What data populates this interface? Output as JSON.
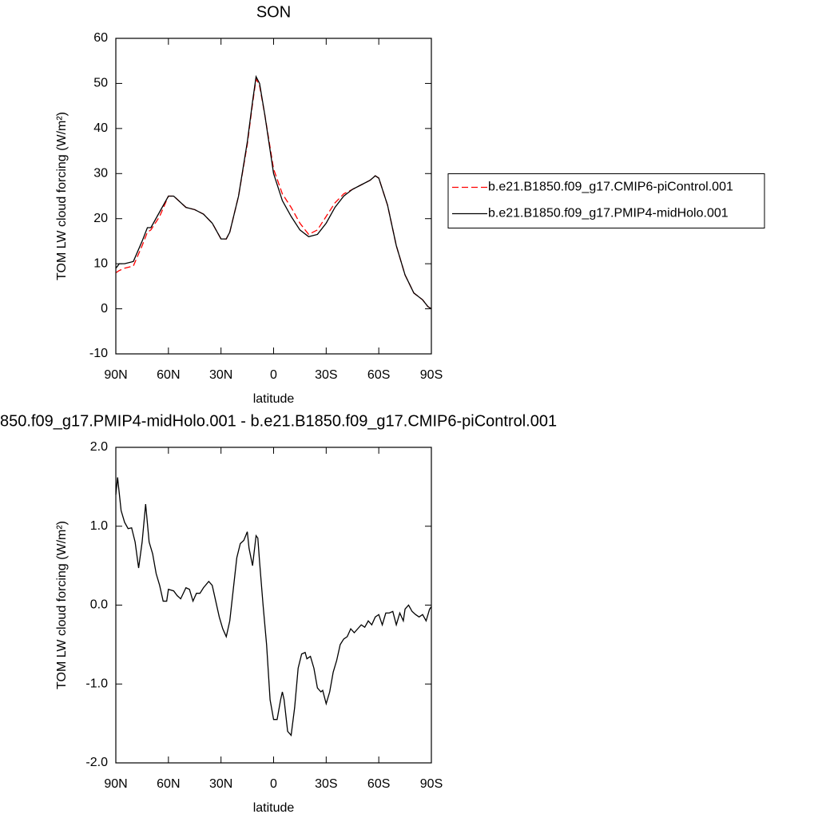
{
  "chart_data": [
    {
      "type": "line",
      "title": "SON",
      "xlabel": "latitude",
      "ylabel": "TOM LW cloud forcing (W/m²)",
      "xlim": [
        90,
        -90
      ],
      "xticks": [
        {
          "value": 90,
          "label": "90N"
        },
        {
          "value": 60,
          "label": "60N"
        },
        {
          "value": 30,
          "label": "30N"
        },
        0,
        {
          "value": -30,
          "label": "30S"
        },
        {
          "value": -60,
          "label": "60S"
        },
        {
          "value": -90,
          "label": "90S"
        }
      ],
      "ylim": [
        -10,
        60
      ],
      "yticks": [
        -10,
        0,
        10,
        20,
        30,
        40,
        50,
        60
      ],
      "legend": "right",
      "x": [
        90,
        88,
        85,
        80,
        75,
        72,
        70,
        65,
        60,
        57,
        50,
        45,
        40,
        35,
        30,
        27,
        25,
        20,
        15,
        12,
        10,
        8,
        5,
        0,
        -5,
        -10,
        -15,
        -20,
        -25,
        -30,
        -35,
        -40,
        -45,
        -50,
        -55,
        -58,
        -60,
        -65,
        -70,
        -75,
        -80,
        -85,
        -88,
        -90
      ],
      "series": [
        {
          "name": "b.e21.B1850.f09_g17.CMIP6-piControl.001",
          "color": "#ff0000",
          "linestyle": "dashed",
          "values": [
            8,
            8.5,
            9,
            9.5,
            14,
            17,
            17.5,
            20.5,
            25,
            25,
            22.5,
            22,
            21,
            19,
            15.5,
            15.5,
            17,
            25,
            36.5,
            45.5,
            51,
            49.5,
            43,
            31,
            25.5,
            22.5,
            19,
            16.5,
            17.5,
            20.5,
            23.5,
            25.5,
            26.5,
            27.5,
            28.5,
            29.5,
            29,
            23,
            14,
            7.5,
            3.5,
            2,
            0.5,
            0
          ]
        },
        {
          "name": "b.e21.B1850.f09_g17.PMIP4-midHolo.001",
          "color": "#000000",
          "linestyle": "solid",
          "values": [
            9,
            10,
            10,
            10.5,
            15,
            18,
            18,
            21.5,
            25,
            25,
            22.5,
            22,
            21,
            19,
            15.5,
            15.5,
            17,
            25,
            37,
            46,
            51.5,
            50,
            43,
            30,
            24,
            20.5,
            17.5,
            16,
            16.5,
            19,
            22.5,
            25,
            26.5,
            27.5,
            28.5,
            29.5,
            29,
            23,
            14,
            7.5,
            3.5,
            2,
            0.5,
            0
          ]
        }
      ]
    },
    {
      "type": "line",
      "title": "850.f09_g17.PMIP4-midHolo.001 - b.e21.B1850.f09_g17.CMIP6-piControl.001",
      "xlabel": "latitude",
      "ylabel": "TOM LW cloud forcing (W/m²)",
      "xlim": [
        90,
        -90
      ],
      "xticks": [
        {
          "value": 90,
          "label": "90N"
        },
        {
          "value": 60,
          "label": "60N"
        },
        {
          "value": 30,
          "label": "30N"
        },
        0,
        {
          "value": -30,
          "label": "30S"
        },
        {
          "value": -60,
          "label": "60S"
        },
        {
          "value": -90,
          "label": "90S"
        }
      ],
      "ylim": [
        -2,
        2
      ],
      "yticks": [
        {
          "value": -2,
          "label": "-2.0"
        },
        {
          "value": -1,
          "label": "-1.0"
        },
        {
          "value": 0,
          "label": "0.0"
        },
        {
          "value": 1,
          "label": "1.0"
        },
        {
          "value": 2,
          "label": "2.0"
        }
      ],
      "color": "#000000",
      "x": [
        90,
        89,
        87,
        85,
        83,
        81,
        79,
        77,
        75,
        73,
        71,
        69,
        67,
        65,
        63,
        61,
        60,
        57,
        55,
        53,
        50,
        48,
        46,
        44,
        42,
        40,
        37,
        35,
        33,
        31,
        29,
        27,
        25,
        23,
        21,
        19,
        17,
        15,
        14,
        12,
        10,
        9,
        8,
        6,
        4,
        2,
        0,
        -2,
        -4,
        -5,
        -6,
        -8,
        -10,
        -12,
        -14,
        -16,
        -18,
        -19,
        -21,
        -23,
        -25,
        -27,
        -28,
        -30,
        -32,
        -34,
        -36,
        -38,
        -40,
        -42,
        -44,
        -46,
        -48,
        -50,
        -52,
        -54,
        -56,
        -58,
        -60,
        -62,
        -64,
        -66,
        -68,
        -70,
        -72,
        -74,
        -75,
        -77,
        -79,
        -81,
        -83,
        -85,
        -87,
        -89,
        -90
      ],
      "values": [
        1.4,
        1.62,
        1.2,
        1.05,
        0.97,
        0.98,
        0.8,
        0.47,
        0.8,
        1.28,
        0.8,
        0.65,
        0.4,
        0.25,
        0.05,
        0.05,
        0.2,
        0.18,
        0.12,
        0.08,
        0.22,
        0.2,
        0.05,
        0.15,
        0.15,
        0.22,
        0.3,
        0.25,
        0.05,
        -0.15,
        -0.3,
        -0.4,
        -0.2,
        0.2,
        0.6,
        0.78,
        0.82,
        0.93,
        0.72,
        0.5,
        0.88,
        0.85,
        0.55,
        0,
        -0.5,
        -1.2,
        -1.45,
        -1.45,
        -1.2,
        -1.1,
        -1.2,
        -1.6,
        -1.65,
        -1.3,
        -0.8,
        -0.62,
        -0.6,
        -0.68,
        -0.65,
        -0.8,
        -1.05,
        -1.1,
        -1.08,
        -1.25,
        -1.1,
        -0.85,
        -0.7,
        -0.5,
        -0.43,
        -0.4,
        -0.3,
        -0.35,
        -0.3,
        -0.25,
        -0.28,
        -0.2,
        -0.25,
        -0.15,
        -0.12,
        -0.25,
        -0.1,
        -0.1,
        -0.08,
        -0.25,
        -0.1,
        -0.2,
        -0.05,
        0,
        -0.08,
        -0.12,
        -0.15,
        -0.12,
        -0.2,
        -0.05,
        -0.02
      ]
    }
  ]
}
